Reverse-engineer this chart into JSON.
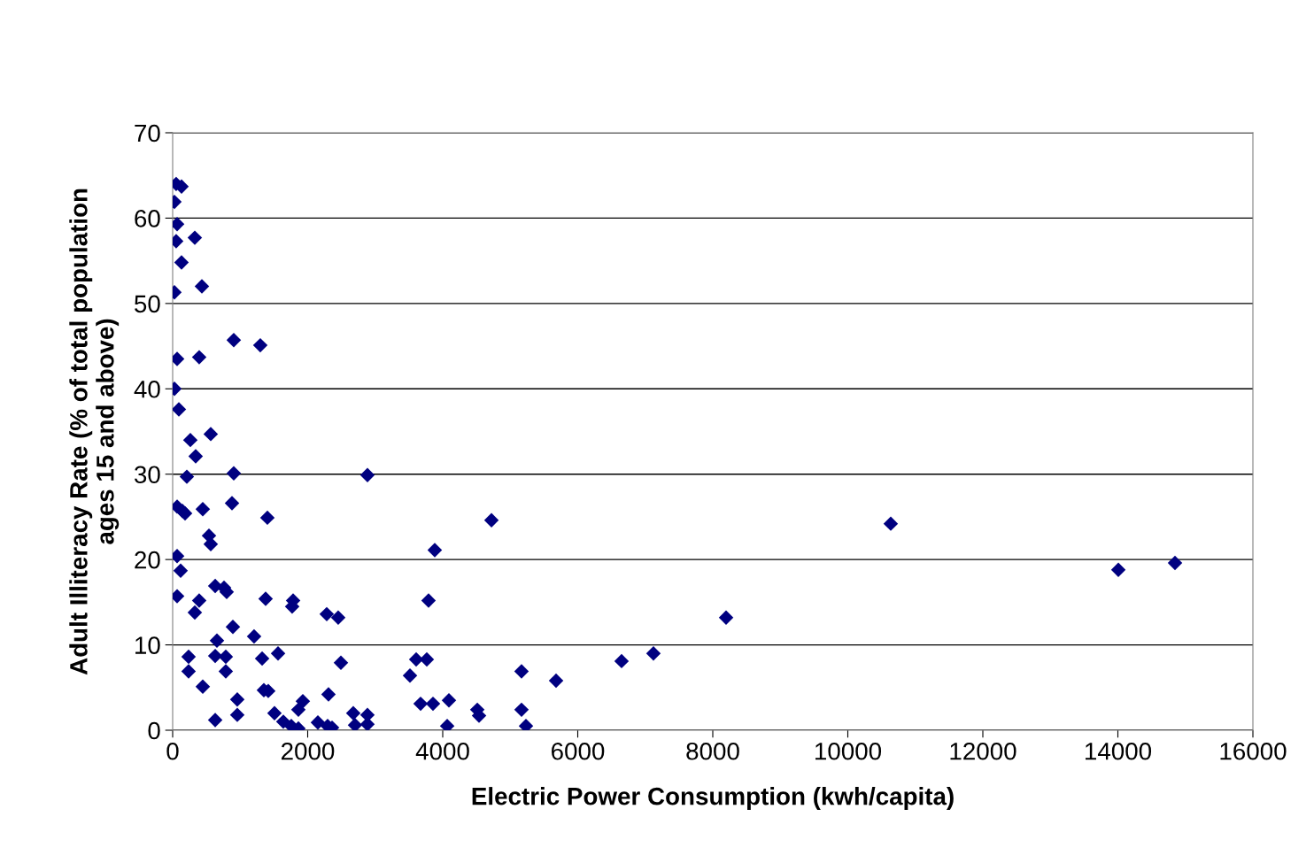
{
  "chart_data": {
    "type": "scatter",
    "xlabel": "Electric Power Consumption (kwh/capita)",
    "ylabel": "Adult Illiteracy Rate (% of total population\nages 15 and above)",
    "xlim": [
      0,
      16000
    ],
    "xticks": [
      0,
      2000,
      4000,
      6000,
      8000,
      10000,
      12000,
      14000,
      16000
    ],
    "ylim": [
      0,
      70
    ],
    "yticks": [
      0,
      10,
      20,
      30,
      40,
      50,
      60,
      70
    ],
    "grid": "y",
    "marker": "diamond",
    "series": [
      {
        "color": "#000080",
        "x": [
          26,
          52,
          131,
          66,
          52,
          131,
          328,
          26,
          433,
          66,
          393,
          905,
          1298,
          26,
          92,
          262,
          564,
          341,
          905,
          210,
          66,
          184,
          144,
          446,
          879,
          1403,
          538,
          564,
          66,
          118,
          66,
          393,
          630,
          761,
          800,
          328,
          1377,
          1784,
          1770,
          656,
          892,
          1206,
          236,
          630,
          787,
          1325,
          1561,
          236,
          787,
          446,
          957,
          1351,
          1416,
          630,
          957,
          1508,
          1639,
          1757,
          1862,
          1862,
          1928,
          2151,
          2295,
          2361,
          2308,
          2282,
          2452,
          2492,
          2675,
          2701,
          2885,
          2885,
          2885,
          4722,
          3882,
          3790,
          3607,
          3764,
          3515,
          3672,
          3856,
          4092,
          4066,
          4512,
          4538,
          5167,
          5167,
          5233,
          5679,
          6649,
          7121,
          8197,
          10636,
          14007,
          14846
        ],
        "values": [
          61.9,
          64.0,
          63.7,
          59.3,
          57.3,
          54.8,
          57.7,
          51.3,
          52.0,
          43.5,
          43.7,
          45.7,
          45.1,
          40.0,
          37.6,
          34.0,
          34.7,
          32.1,
          30.1,
          29.7,
          26.2,
          25.4,
          25.7,
          25.9,
          26.6,
          24.9,
          22.8,
          21.8,
          20.4,
          18.7,
          15.7,
          15.2,
          16.9,
          16.7,
          16.2,
          13.8,
          15.4,
          15.2,
          14.5,
          10.5,
          12.1,
          11.0,
          8.6,
          8.7,
          8.6,
          8.4,
          9.0,
          6.9,
          6.9,
          5.1,
          3.6,
          4.7,
          4.6,
          1.2,
          1.8,
          2.0,
          1.0,
          0.5,
          0.2,
          2.4,
          3.4,
          0.9,
          0.5,
          0.3,
          4.2,
          13.6,
          13.2,
          7.9,
          2.0,
          0.6,
          1.8,
          0.7,
          29.9,
          24.6,
          21.1,
          15.2,
          8.3,
          8.3,
          6.4,
          3.1,
          3.1,
          3.5,
          0.5,
          2.4,
          1.7,
          6.9,
          2.4,
          0.5,
          5.8,
          8.1,
          9.0,
          13.2,
          24.2,
          18.8,
          19.6
        ]
      }
    ]
  }
}
